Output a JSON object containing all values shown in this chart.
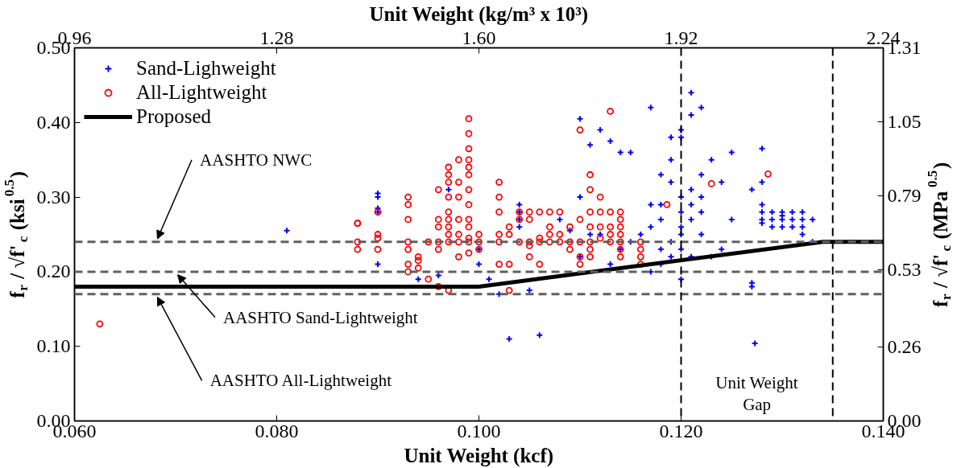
{
  "chart_data": {
    "type": "scatter",
    "xlabel": "Unit Weight (kcf)",
    "x2label": "Unit Weight (kg/m³ x 10³)",
    "ylabel": "f$_{r}$ / √f'$_{c}$ (ksi$^{0.5}$)",
    "y2label": "f$_{r}$ / √f'$_{c}$ (MPa$^{0.5}$)",
    "xlim": [
      0.06,
      0.14
    ],
    "xticks": [
      {
        "value": 0.06,
        "label": "0.060"
      },
      {
        "value": 0.08,
        "label": "0.080"
      },
      {
        "value": 0.1,
        "label": "0.100"
      },
      {
        "value": 0.12,
        "label": "0.120"
      },
      {
        "value": 0.14,
        "label": "0.140"
      }
    ],
    "x2lim": [
      0.96,
      2.24
    ],
    "x2ticks": [
      0.96,
      1.28,
      {
        "value": 1.6,
        "label": "1.60"
      },
      1.92,
      2.24
    ],
    "ylim": [
      0,
      0.5
    ],
    "yticks": [
      {
        "value": 0,
        "label": "0.00"
      },
      {
        "value": 0.1,
        "label": "0.10"
      },
      {
        "value": 0.2,
        "label": "0.20"
      },
      {
        "value": 0.3,
        "label": "0.30"
      },
      {
        "value": 0.4,
        "label": "0.40"
      },
      {
        "value": 0.5,
        "label": "0.50"
      }
    ],
    "y2lim": [
      0,
      1.31
    ],
    "y2ticks": [
      {
        "value": 0,
        "label": "0.00"
      },
      0.26,
      0.53,
      0.79,
      1.05,
      1.31
    ],
    "grid": false,
    "legend": "top left",
    "series": [
      {
        "name": "Sand-Lighweight",
        "color": "#0000ff",
        "marker": "cross",
        "x": [
          0.081,
          0.09,
          0.09,
          0.09,
          0.09,
          0.09,
          0.094,
          0.096,
          0.097,
          0.1,
          0.1,
          0.101,
          0.102,
          0.103,
          0.104,
          0.104,
          0.104,
          0.104,
          0.105,
          0.106,
          0.108,
          0.109,
          0.11,
          0.11,
          0.111,
          0.112,
          0.113,
          0.114,
          0.115,
          0.117,
          0.118,
          0.119,
          0.119,
          0.12,
          0.12,
          0.121,
          0.121,
          0.122,
          0.122,
          0.119,
          0.118,
          0.118,
          0.117,
          0.116,
          0.115,
          0.114,
          0.113,
          0.112,
          0.111,
          0.11,
          0.12,
          0.12,
          0.12,
          0.12,
          0.12,
          0.12,
          0.121,
          0.121,
          0.121,
          0.121,
          0.122,
          0.122,
          0.122,
          0.119,
          0.119,
          0.118,
          0.118,
          0.123,
          0.124,
          0.125,
          0.125,
          0.127,
          0.128,
          0.128,
          0.128,
          0.128,
          0.127,
          0.127,
          0.128,
          0.128,
          0.129,
          0.129,
          0.129,
          0.13,
          0.13,
          0.13,
          0.13,
          0.131,
          0.131,
          0.131,
          0.132,
          0.132,
          0.132,
          0.132,
          0.133,
          0.133,
          0.123,
          0.124,
          0.117,
          0.1273,
          0.117
        ],
        "values": [
          0.255,
          0.305,
          0.3,
          0.285,
          0.28,
          0.21,
          0.19,
          0.195,
          0.31,
          0.23,
          0.21,
          0.19,
          0.17,
          0.11,
          0.29,
          0.28,
          0.27,
          0.26,
          0.175,
          0.115,
          0.27,
          0.255,
          0.405,
          0.3,
          0.37,
          0.39,
          0.375,
          0.36,
          0.36,
          0.42,
          0.33,
          0.32,
          0.35,
          0.38,
          0.39,
          0.41,
          0.44,
          0.42,
          0.33,
          0.38,
          0.29,
          0.27,
          0.26,
          0.25,
          0.24,
          0.23,
          0.21,
          0.25,
          0.25,
          0.22,
          0.3,
          0.28,
          0.26,
          0.25,
          0.23,
          0.19,
          0.31,
          0.29,
          0.27,
          0.22,
          0.3,
          0.28,
          0.25,
          0.22,
          0.24,
          0.23,
          0.21,
          0.35,
          0.32,
          0.36,
          0.27,
          0.31,
          0.29,
          0.28,
          0.27,
          0.265,
          0.185,
          0.18,
          0.365,
          0.32,
          0.28,
          0.27,
          0.26,
          0.28,
          0.275,
          0.27,
          0.26,
          0.28,
          0.27,
          0.26,
          0.28,
          0.27,
          0.26,
          0.25,
          0.27,
          0.24,
          0.22,
          0.23,
          0.2,
          0.104,
          0.29
        ]
      },
      {
        "name": "All-Lightweight",
        "color": "#ff0000",
        "marker": "circle",
        "x": [
          0.0625,
          0.088,
          0.088,
          0.088,
          0.088,
          0.09,
          0.09,
          0.09,
          0.09,
          0.093,
          0.093,
          0.093,
          0.093,
          0.093,
          0.093,
          0.093,
          0.094,
          0.094,
          0.094,
          0.095,
          0.095,
          0.096,
          0.096,
          0.096,
          0.096,
          0.096,
          0.096,
          0.097,
          0.097,
          0.097,
          0.097,
          0.097,
          0.097,
          0.097,
          0.097,
          0.097,
          0.097,
          0.098,
          0.098,
          0.098,
          0.098,
          0.098,
          0.098,
          0.098,
          0.099,
          0.099,
          0.099,
          0.099,
          0.099,
          0.099,
          0.099,
          0.099,
          0.099,
          0.099,
          0.099,
          0.099,
          0.099,
          0.1,
          0.1,
          0.1,
          0.102,
          0.102,
          0.102,
          0.102,
          0.102,
          0.102,
          0.103,
          0.103,
          0.103,
          0.103,
          0.104,
          0.104,
          0.104,
          0.105,
          0.105,
          0.105,
          0.105,
          0.105,
          0.106,
          0.106,
          0.106,
          0.106,
          0.107,
          0.107,
          0.107,
          0.107,
          0.108,
          0.108,
          0.108,
          0.109,
          0.109,
          0.109,
          0.11,
          0.11,
          0.11,
          0.11,
          0.11,
          0.111,
          0.111,
          0.111,
          0.111,
          0.111,
          0.111,
          0.111,
          0.112,
          0.112,
          0.112,
          0.112,
          0.113,
          0.113,
          0.113,
          0.113,
          0.113,
          0.114,
          0.114,
          0.114,
          0.114,
          0.114,
          0.114,
          0.114,
          0.116,
          0.116,
          0.116,
          0.116,
          0.1186,
          0.123,
          0.1286
        ],
        "values": [
          0.13,
          0.265,
          0.265,
          0.23,
          0.24,
          0.28,
          0.25,
          0.245,
          0.23,
          0.3,
          0.29,
          0.27,
          0.24,
          0.23,
          0.21,
          0.2,
          0.22,
          0.215,
          0.205,
          0.24,
          0.19,
          0.31,
          0.27,
          0.26,
          0.24,
          0.23,
          0.18,
          0.34,
          0.33,
          0.32,
          0.3,
          0.28,
          0.27,
          0.26,
          0.25,
          0.24,
          0.175,
          0.35,
          0.32,
          0.3,
          0.27,
          0.25,
          0.24,
          0.22,
          0.405,
          0.385,
          0.365,
          0.35,
          0.34,
          0.33,
          0.31,
          0.29,
          0.27,
          0.26,
          0.245,
          0.24,
          0.225,
          0.25,
          0.24,
          0.23,
          0.32,
          0.3,
          0.28,
          0.25,
          0.24,
          0.21,
          0.26,
          0.25,
          0.21,
          0.175,
          0.28,
          0.27,
          0.24,
          0.28,
          0.27,
          0.24,
          0.235,
          0.22,
          0.28,
          0.245,
          0.24,
          0.21,
          0.28,
          0.26,
          0.25,
          0.24,
          0.28,
          0.25,
          0.24,
          0.26,
          0.24,
          0.23,
          0.39,
          0.27,
          0.24,
          0.22,
          0.21,
          0.33,
          0.31,
          0.28,
          0.26,
          0.24,
          0.23,
          0.22,
          0.3,
          0.28,
          0.26,
          0.245,
          0.415,
          0.28,
          0.26,
          0.25,
          0.24,
          0.28,
          0.27,
          0.26,
          0.25,
          0.24,
          0.23,
          0.22,
          0.24,
          0.23,
          0.22,
          0.21,
          0.29,
          0.318,
          0.331
        ]
      },
      {
        "name": "Proposed",
        "type": "line",
        "color": "#000000",
        "marker": "none",
        "line_style": "solid",
        "x": [
          0.06,
          0.1,
          0.134,
          0.14
        ],
        "values": [
          0.18,
          0.18,
          0.24,
          0.24
        ]
      }
    ],
    "ref_lines": [
      {
        "axis": "y",
        "value": 0.24,
        "label": "AASHTO NWC",
        "color": "#606060",
        "line_style": "dashed"
      },
      {
        "axis": "y",
        "value": 0.2,
        "label": "AASHTO Sand-Lightweight",
        "color": "#606060",
        "line_style": "dashed"
      },
      {
        "axis": "y",
        "value": 0.17,
        "label": "AASHTO All-Lightweight",
        "color": "#606060",
        "line_style": "dashed"
      },
      {
        "axis": "x",
        "value": 0.12,
        "color": "#000000",
        "line_style": "dashed"
      },
      {
        "axis": "x",
        "value": 0.135,
        "color": "#000000",
        "line_style": "dashed"
      }
    ],
    "annotations": [
      "Unit Weight\nGap"
    ]
  }
}
